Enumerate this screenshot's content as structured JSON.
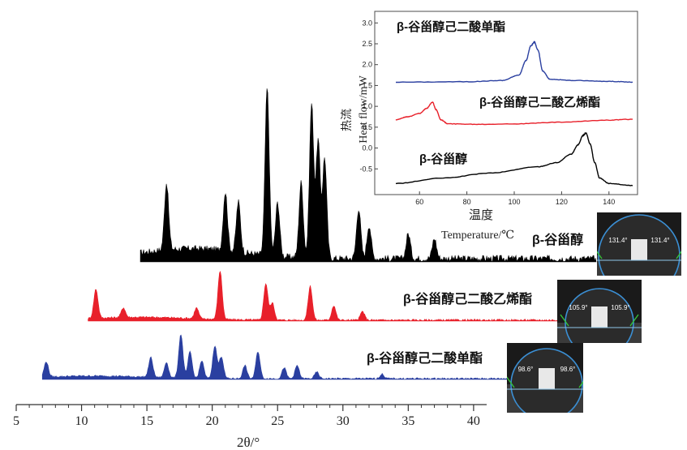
{
  "xrd_panel": {
    "xlabel": "2θ/°",
    "xticks": [
      5,
      10,
      15,
      20,
      25,
      30,
      35,
      40
    ]
  },
  "inset_panel": {
    "ylabel_cn": "热流",
    "ylabel_en": "Heat  flow/mW",
    "xlabel_cn": "温度",
    "xlabel_en": "Temperature/℃",
    "yticks": [
      "-0.5",
      "0.0",
      "0.5",
      "1.0",
      "1.5",
      "2.0",
      "2.5",
      "3.0"
    ],
    "xticks": [
      "60",
      "80",
      "100",
      "120",
      "140"
    ]
  },
  "droplets": [
    {
      "sample": "black",
      "left_angle": "131.4°",
      "right_angle": "131.4°"
    },
    {
      "sample": "red",
      "left_angle": "105.9°",
      "right_angle": "105.9°"
    },
    {
      "sample": "blue",
      "left_angle": "98.6°",
      "right_angle": "98.6°"
    }
  ],
  "chart_data": [
    {
      "type": "line",
      "xlabel": "2θ/°",
      "xlim": [
        5,
        41
      ],
      "series": [
        {
          "name": "β-谷甾醇",
          "color": "#000000",
          "x_start": 14.5,
          "peaks": [
            [
              16.5,
              40
            ],
            [
              21,
              35
            ],
            [
              22,
              30
            ],
            [
              24.2,
              100
            ],
            [
              25,
              32
            ],
            [
              26.8,
              45
            ],
            [
              27.6,
              92
            ],
            [
              28.1,
              70
            ],
            [
              28.6,
              60
            ],
            [
              31.2,
              30
            ],
            [
              32,
              20
            ],
            [
              35,
              15
            ],
            [
              37,
              12
            ]
          ]
        },
        {
          "name": "β-谷甾醇己二酸乙烯酯",
          "color": "#e8202a",
          "x_start": 10.5,
          "peaks": [
            [
              11.1,
              60
            ],
            [
              13.2,
              20
            ],
            [
              18.8,
              22
            ],
            [
              20.6,
              100
            ],
            [
              24.1,
              75
            ],
            [
              24.6,
              35
            ],
            [
              27.5,
              70
            ],
            [
              29.3,
              30
            ],
            [
              31.5,
              18
            ]
          ]
        },
        {
          "name": "β-谷甾醇己二酸单酯",
          "color": "#2a3fa0",
          "x_start": 7.0,
          "peaks": [
            [
              7.3,
              35
            ],
            [
              15.3,
              45
            ],
            [
              16.5,
              35
            ],
            [
              17.6,
              100
            ],
            [
              18.3,
              60
            ],
            [
              19.2,
              40
            ],
            [
              20.2,
              75
            ],
            [
              20.7,
              50
            ],
            [
              22.5,
              30
            ],
            [
              23.5,
              62
            ],
            [
              25.5,
              25
            ],
            [
              26.5,
              30
            ],
            [
              28,
              15
            ],
            [
              33,
              10
            ]
          ]
        }
      ]
    },
    {
      "type": "line",
      "xlabel": "温度 Temperature/℃",
      "ylabel": "热流 Heat flow/mW",
      "xlim": [
        50,
        150
      ],
      "ylim": [
        -1.0,
        3.2
      ],
      "series": [
        {
          "name": "β-谷甾醇己二酸单酯",
          "color": "#2a3fa0",
          "points": [
            [
              50,
              1.58
            ],
            [
              80,
              1.59
            ],
            [
              95,
              1.62
            ],
            [
              102,
              1.75
            ],
            [
              105,
              2.1
            ],
            [
              107,
              2.45
            ],
            [
              108.5,
              2.54
            ],
            [
              110,
              2.35
            ],
            [
              112,
              1.85
            ],
            [
              115,
              1.65
            ],
            [
              125,
              1.62
            ],
            [
              140,
              1.6
            ],
            [
              150,
              1.58
            ]
          ]
        },
        {
          "name": "β-谷甾醇己二酸乙烯酯",
          "color": "#e8202a",
          "points": [
            [
              50,
              0.68
            ],
            [
              55,
              0.75
            ],
            [
              60,
              0.83
            ],
            [
              63,
              0.95
            ],
            [
              65.5,
              1.1
            ],
            [
              67,
              0.92
            ],
            [
              69,
              0.68
            ],
            [
              72,
              0.58
            ],
            [
              85,
              0.57
            ],
            [
              100,
              0.58
            ],
            [
              120,
              0.62
            ],
            [
              140,
              0.67
            ],
            [
              150,
              0.69
            ]
          ]
        },
        {
          "name": "β-谷甾醇",
          "color": "#000000",
          "points": [
            [
              50,
              -0.85
            ],
            [
              70,
              -0.72
            ],
            [
              90,
              -0.6
            ],
            [
              110,
              -0.45
            ],
            [
              118,
              -0.35
            ],
            [
              124,
              -0.15
            ],
            [
              127,
              0.08
            ],
            [
              129,
              0.3
            ],
            [
              130.3,
              0.36
            ],
            [
              132,
              0.1
            ],
            [
              134,
              -0.35
            ],
            [
              136,
              -0.72
            ],
            [
              140,
              -0.85
            ],
            [
              150,
              -0.9
            ]
          ]
        }
      ]
    }
  ]
}
